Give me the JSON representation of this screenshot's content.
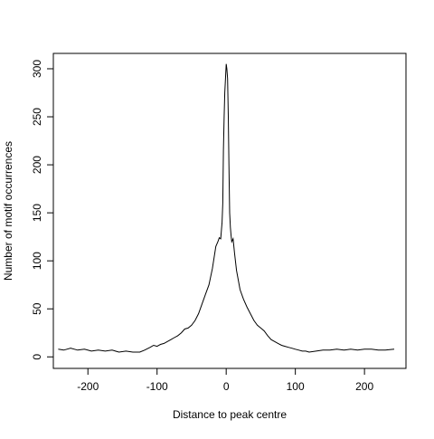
{
  "chart_data": {
    "type": "line",
    "title": "",
    "xlabel": "Distance to peak centre",
    "ylabel": "Number of motif occurrences",
    "xlim": [
      -250,
      260
    ],
    "ylim": [
      -12,
      316
    ],
    "xticks": [
      -200,
      -100,
      0,
      100,
      200
    ],
    "yticks": [
      0,
      50,
      100,
      150,
      200,
      250,
      300
    ],
    "xtick_labels": [
      "-200",
      "-100",
      "0",
      "100",
      "200"
    ],
    "ytick_labels": [
      "0",
      "50",
      "100",
      "150",
      "200",
      "250",
      "300"
    ],
    "grid": false,
    "legend": "none",
    "line_color": "#000000",
    "series": [
      {
        "x": [
          -243,
          -235,
          -225,
          -215,
          -205,
          -195,
          -185,
          -175,
          -165,
          -155,
          -145,
          -135,
          -125,
          -118,
          -110,
          -105,
          -100,
          -95,
          -90,
          -85,
          -80,
          -75,
          -70,
          -65,
          -60,
          -55,
          -50,
          -45,
          -40,
          -35,
          -30,
          -25,
          -20,
          -15,
          -12,
          -10,
          -8,
          -6,
          -5,
          -4,
          -3,
          -2,
          -1,
          0,
          1,
          2,
          3,
          4,
          5,
          6,
          7,
          8,
          10,
          12,
          15,
          20,
          25,
          30,
          35,
          40,
          45,
          50,
          55,
          60,
          65,
          70,
          75,
          80,
          85,
          90,
          95,
          100,
          105,
          110,
          115,
          120,
          130,
          140,
          150,
          160,
          170,
          180,
          190,
          200,
          210,
          220,
          230,
          243
        ],
        "values": [
          8,
          7,
          9,
          7,
          8,
          6,
          7,
          6,
          7,
          5,
          6,
          5,
          5,
          7,
          10,
          12,
          11,
          13,
          14,
          16,
          18,
          20,
          22,
          25,
          29,
          30,
          33,
          38,
          45,
          55,
          65,
          75,
          92,
          115,
          120,
          124,
          123,
          140,
          160,
          215,
          250,
          275,
          290,
          305,
          300,
          290,
          250,
          200,
          150,
          135,
          127,
          120,
          123,
          108,
          90,
          70,
          60,
          52,
          45,
          38,
          33,
          30,
          27,
          22,
          18,
          16,
          14,
          12,
          11,
          10,
          9,
          8,
          7,
          6,
          6,
          5,
          6,
          7,
          7,
          8,
          7,
          8,
          7,
          8,
          8,
          7,
          7,
          8
        ]
      }
    ]
  }
}
